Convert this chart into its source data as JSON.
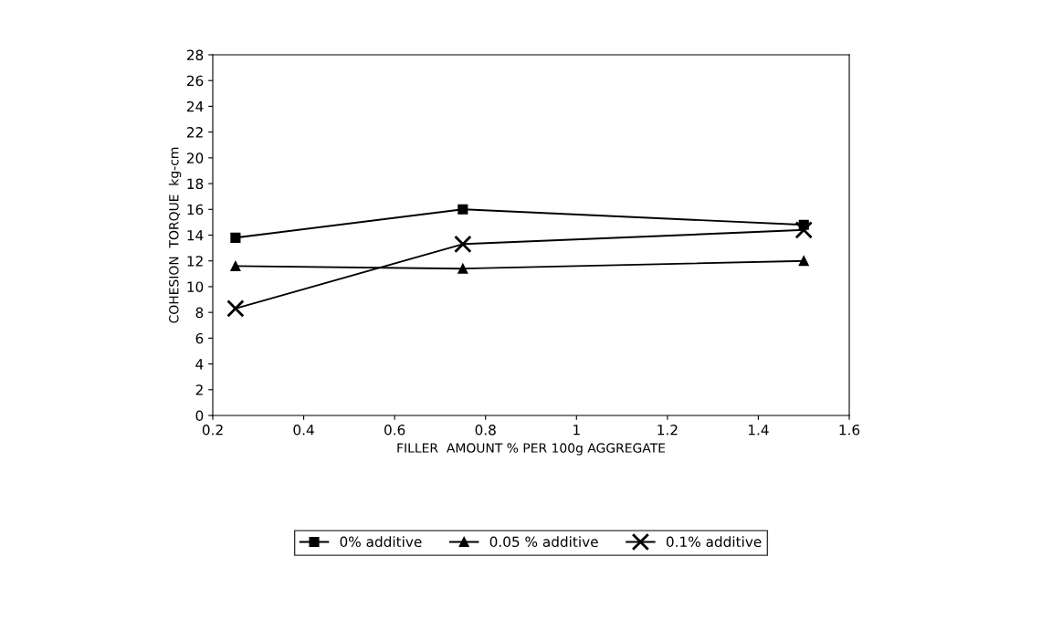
{
  "chart_data": {
    "type": "line",
    "xlabel": "FILLER  AMOUNT % PER 100g AGGREGATE",
    "ylabel": "COHESION  TORQUE  kg-cm",
    "x": [
      0.25,
      0.75,
      1.5
    ],
    "series": [
      {
        "name": "0% additive",
        "color": "#000000",
        "values": [
          13.8,
          16.0,
          14.8
        ],
        "marker": "square"
      },
      {
        "name": "0.05 % additive",
        "color": "#000000",
        "values": [
          11.6,
          11.4,
          12.0
        ],
        "marker": "triangle"
      },
      {
        "name": "0.1% additive",
        "color": "#000000",
        "values": [
          8.3,
          13.3,
          14.4
        ],
        "marker": "cross"
      }
    ],
    "xlim": [
      0.2,
      1.6
    ],
    "xticks": [
      0.2,
      0.4,
      0.6,
      0.8,
      {
        "value": 1.0,
        "label": "1"
      },
      1.2,
      1.4,
      1.6
    ],
    "ylim": [
      0,
      28
    ],
    "yticks": [
      0,
      2,
      4,
      6,
      8,
      10,
      12,
      14,
      16,
      18,
      20,
      22,
      24,
      26,
      28
    ],
    "grid": false,
    "legend": "bottom",
    "line_style": "solid"
  }
}
